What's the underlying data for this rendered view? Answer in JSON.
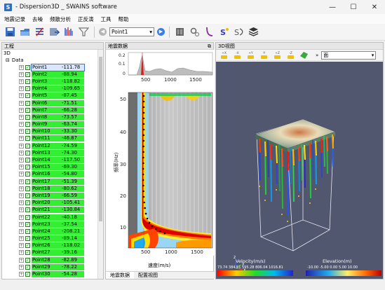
{
  "window": {
    "title": "- Dispersion3D _ SWAINS software",
    "app_icon_letter": "S",
    "minimize": "—",
    "maximize": "☐",
    "close": "✕"
  },
  "menu": [
    "地震记录",
    "去噪",
    "频散分析",
    "正反演",
    "工具",
    "帮助"
  ],
  "toolbar": {
    "point_select": "Point1",
    "prev_icon": "◀",
    "next_icon": "▶"
  },
  "left_panel": {
    "header": "工程",
    "root": "3D",
    "data_node": "Data",
    "points": [
      {
        "name": "Point1",
        "value": "-111.78"
      },
      {
        "name": "Point2",
        "value": "-88.94"
      },
      {
        "name": "Point3",
        "value": "-118.82"
      },
      {
        "name": "Point4",
        "value": "-109.65"
      },
      {
        "name": "Point5",
        "value": "-87.45"
      },
      {
        "name": "Point6",
        "value": "-71.51"
      },
      {
        "name": "Point7",
        "value": "-66.28"
      },
      {
        "name": "Point8",
        "value": "-73.57"
      },
      {
        "name": "Point9",
        "value": "-63.74"
      },
      {
        "name": "Point10",
        "value": "-33.30"
      },
      {
        "name": "Point11",
        "value": "-46.87"
      },
      {
        "name": "Point12",
        "value": "-74.59"
      },
      {
        "name": "Point13",
        "value": "-74.30"
      },
      {
        "name": "Point14",
        "value": "-117.50"
      },
      {
        "name": "Point15",
        "value": "-69.30"
      },
      {
        "name": "Point16",
        "value": "-54.80"
      },
      {
        "name": "Point17",
        "value": "-51.39"
      },
      {
        "name": "Point18",
        "value": "-80.62"
      },
      {
        "name": "Point19",
        "value": "-66.59"
      },
      {
        "name": "Point20",
        "value": "-105.41"
      },
      {
        "name": "Point21",
        "value": "-130.84"
      },
      {
        "name": "Point22",
        "value": "-40.18"
      },
      {
        "name": "Point23",
        "value": "-37.54"
      },
      {
        "name": "Point24",
        "value": "-208.21"
      },
      {
        "name": "Point25",
        "value": "-89.14"
      },
      {
        "name": "Point26",
        "value": "-118.02"
      },
      {
        "name": "Point27",
        "value": "-39.16"
      },
      {
        "name": "Point28",
        "value": "-82.89"
      },
      {
        "name": "Point29",
        "value": "-78.22"
      },
      {
        "name": "Point30",
        "value": "-54.28"
      }
    ]
  },
  "center_panel": {
    "header": "地震数据",
    "tabs": [
      "地震数据",
      "配置视图"
    ],
    "top_plot": {
      "y_ticks": [
        "0.2",
        "0.1",
        "0"
      ],
      "x_ticks": [
        "500",
        "1000",
        "1500"
      ]
    },
    "main_plot": {
      "y_ticks": [
        "50",
        "40",
        "30",
        "20",
        "10"
      ],
      "x_ticks": [
        "500",
        "1000",
        "1500"
      ],
      "ylabel": "频率(Hz)",
      "xlabel": "速度(m/s)"
    }
  },
  "right_panel": {
    "header": "3D视图",
    "axis_buttons": [
      "+X",
      "-X",
      "+Y",
      "-Y",
      "+Z",
      "-Z"
    ],
    "face_select": "面",
    "legend_left_title": "Velocity(m/s)",
    "legend_left_ticks": "73.74 384.51 595.28 806.04 1016.81",
    "legend_right_title": "Elevation(m)",
    "legend_right_ticks": "-10.00  -5.00  0.00  5.00  10.00",
    "axes_labels": [
      "z",
      "y",
      "x"
    ]
  }
}
